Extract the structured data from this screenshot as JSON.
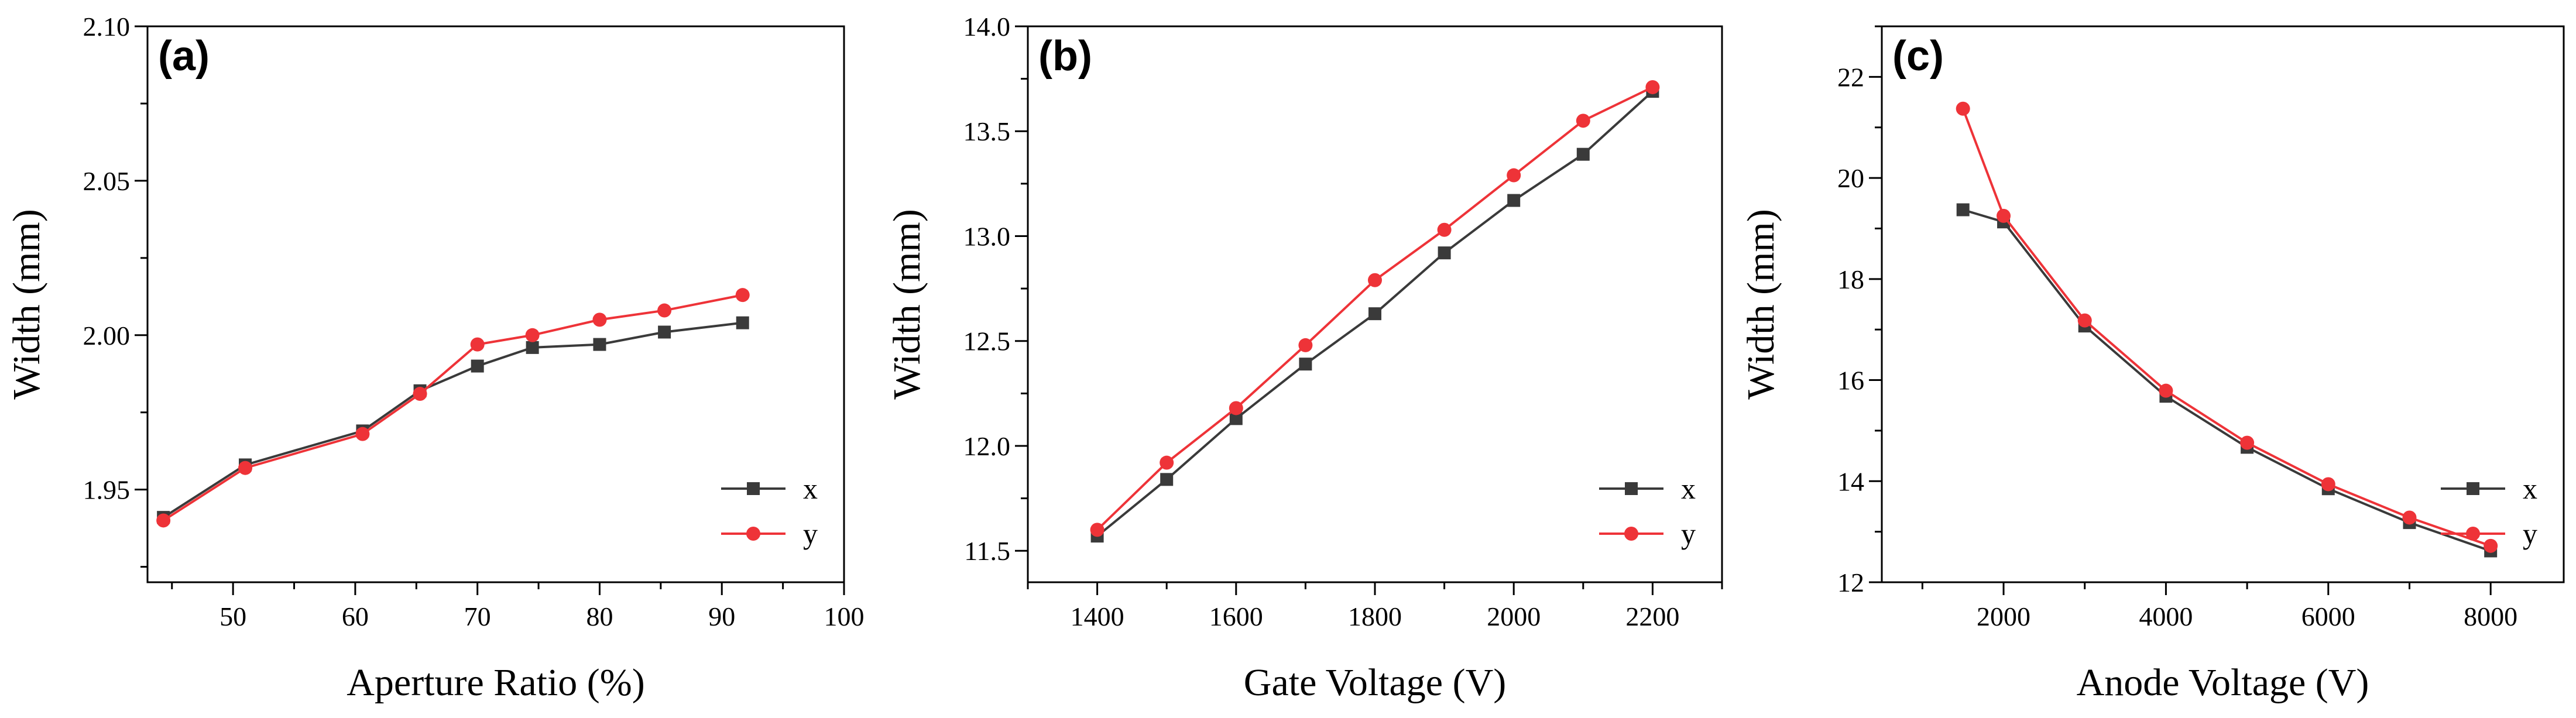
{
  "figure_title": "",
  "chart_data": [
    {
      "type": "line",
      "panel_label": "(a)",
      "title": "",
      "xlabel": "Aperture Ratio (%)",
      "ylabel": "Width (mm)",
      "xlim": [
        43,
        100
      ],
      "ylim": [
        1.92,
        2.1
      ],
      "xticks": [
        50,
        60,
        70,
        80,
        90,
        100
      ],
      "yticks": [
        1.95,
        2.0,
        2.05,
        2.1
      ],
      "xtick_labels": [
        "50",
        "60",
        "70",
        "80",
        "90",
        "100"
      ],
      "ytick_labels": [
        "1.95",
        "2.00",
        "2.05",
        "2.10"
      ],
      "grid": false,
      "legend_position": "bottom-right",
      "series": [
        {
          "name": "x",
          "marker": "square",
          "color": "#3a3a3a",
          "x": [
            44.3,
            51,
            60.6,
            65.3,
            70,
            74.5,
            80,
            85.3,
            91.7
          ],
          "y": [
            1.941,
            1.958,
            1.969,
            1.982,
            1.99,
            1.996,
            1.997,
            2.001,
            2.004
          ]
        },
        {
          "name": "y",
          "marker": "circle",
          "color": "#ee3338",
          "x": [
            44.3,
            51,
            60.6,
            65.3,
            70,
            74.5,
            80,
            85.3,
            91.7
          ],
          "y": [
            1.94,
            1.957,
            1.968,
            1.981,
            1.997,
            2.0,
            2.005,
            2.008,
            2.013
          ]
        }
      ]
    },
    {
      "type": "line",
      "panel_label": "(b)",
      "title": "",
      "xlabel": "Gate Voltage (V)",
      "ylabel": "Width (mm)",
      "xlim": [
        1300,
        2300
      ],
      "ylim": [
        11.35,
        14.0
      ],
      "xticks": [
        1400,
        1600,
        1800,
        2000,
        2200
      ],
      "yticks": [
        11.5,
        12.0,
        12.5,
        13.0,
        13.5,
        14.0
      ],
      "xtick_labels": [
        "1400",
        "1600",
        "1800",
        "2000",
        "2200"
      ],
      "ytick_labels": [
        "11.5",
        "12.0",
        "12.5",
        "13.0",
        "13.5",
        "14.0"
      ],
      "grid": false,
      "legend_position": "bottom-right",
      "series": [
        {
          "name": "x",
          "marker": "square",
          "color": "#3a3a3a",
          "x": [
            1400,
            1500,
            1600,
            1700,
            1800,
            1900,
            2000,
            2100,
            2200
          ],
          "y": [
            11.57,
            11.84,
            12.13,
            12.39,
            12.63,
            12.92,
            13.17,
            13.39,
            13.69
          ]
        },
        {
          "name": "y",
          "marker": "circle",
          "color": "#ee3338",
          "x": [
            1400,
            1500,
            1600,
            1700,
            1800,
            1900,
            2000,
            2100,
            2200
          ],
          "y": [
            11.6,
            11.92,
            12.18,
            12.48,
            12.79,
            13.03,
            13.29,
            13.55,
            13.71
          ]
        }
      ]
    },
    {
      "type": "line",
      "panel_label": "(c)",
      "title": "",
      "xlabel": "Anode Voltage (V)",
      "ylabel": "Width (mm)",
      "xlim": [
        500,
        8900
      ],
      "ylim": [
        12,
        23
      ],
      "xticks": [
        2000,
        4000,
        6000,
        8000
      ],
      "yticks": [
        12,
        14,
        16,
        18,
        20,
        22
      ],
      "xtick_labels": [
        "2000",
        "4000",
        "6000",
        "8000"
      ],
      "ytick_labels": [
        "12",
        "14",
        "16",
        "18",
        "20",
        "22"
      ],
      "grid": false,
      "legend_position": "bottom-right",
      "series": [
        {
          "name": "x",
          "marker": "square",
          "color": "#3a3a3a",
          "x": [
            1500,
            2000,
            3000,
            4000,
            5000,
            6000,
            7000,
            8000
          ],
          "y": [
            19.37,
            19.13,
            17.07,
            15.68,
            14.67,
            13.85,
            13.18,
            12.62
          ]
        },
        {
          "name": "y",
          "marker": "circle",
          "color": "#ee3338",
          "x": [
            1500,
            2000,
            3000,
            4000,
            5000,
            6000,
            7000,
            8000
          ],
          "y": [
            21.37,
            19.25,
            17.18,
            15.79,
            14.76,
            13.94,
            13.28,
            12.72
          ]
        }
      ]
    }
  ]
}
